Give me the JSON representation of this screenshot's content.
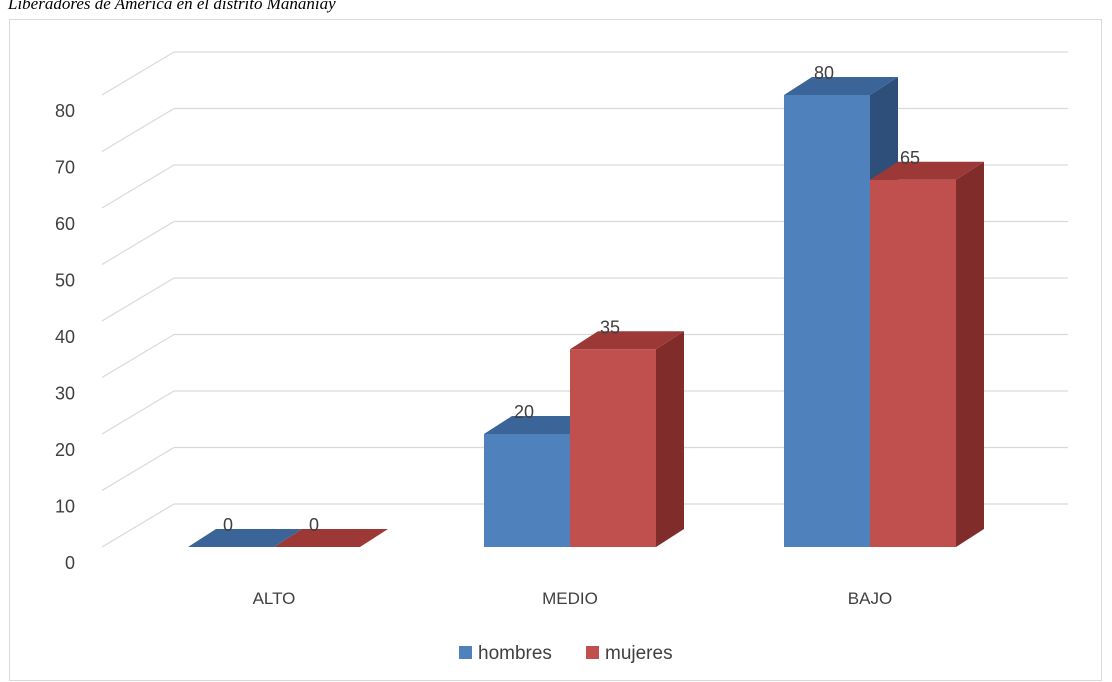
{
  "caption": "Liberadores de América en el distrito Mañaniay",
  "chart_data": {
    "type": "bar",
    "categories": [
      "ALTO",
      "MEDIO",
      "BAJO"
    ],
    "series": [
      {
        "name": "hombres",
        "values": [
          0,
          20,
          80
        ],
        "color": "#4f81bd",
        "side_color": "#2e4f79",
        "top_color": "#3b6498"
      },
      {
        "name": "mujeres",
        "values": [
          0,
          35,
          65
        ],
        "color": "#c0504d",
        "side_color": "#7f2c2b",
        "top_color": "#9c3936"
      }
    ],
    "ylim": [
      0,
      80
    ],
    "yticks": [
      0,
      10,
      20,
      30,
      40,
      50,
      60,
      70,
      80
    ],
    "grid": true,
    "legend": "bottom",
    "style": "3d-column"
  }
}
